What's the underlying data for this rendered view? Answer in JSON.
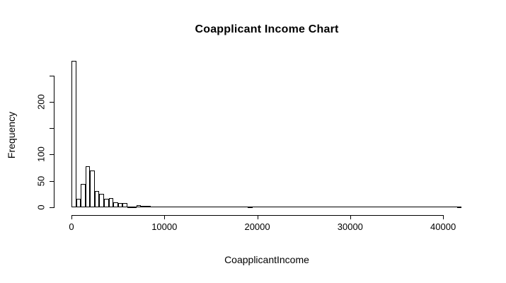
{
  "chart_data": {
    "type": "bar",
    "subtype": "histogram",
    "title": "Coapplicant Income Chart",
    "xlabel": "CoapplicantIncome",
    "ylabel": "Frequency",
    "xlim": [
      0,
      42000
    ],
    "ylim": [
      0,
      250
    ],
    "bin_width": 500,
    "x_ticks": [
      0,
      10000,
      20000,
      30000,
      40000
    ],
    "x_tick_labels": [
      "0",
      "10000",
      "20000",
      "30000",
      "40000"
    ],
    "y_ticks": [
      0,
      50,
      100,
      150,
      200,
      250
    ],
    "y_tick_labels": [
      "0",
      "50",
      "100",
      "",
      "200",
      ""
    ],
    "grid": "off",
    "legend": "none",
    "bins": [
      {
        "start": 0,
        "count": 279
      },
      {
        "start": 500,
        "count": 16
      },
      {
        "start": 1000,
        "count": 44
      },
      {
        "start": 1500,
        "count": 78
      },
      {
        "start": 2000,
        "count": 70
      },
      {
        "start": 2500,
        "count": 30
      },
      {
        "start": 3000,
        "count": 25
      },
      {
        "start": 3500,
        "count": 15
      },
      {
        "start": 4000,
        "count": 17
      },
      {
        "start": 4500,
        "count": 9
      },
      {
        "start": 5000,
        "count": 7
      },
      {
        "start": 5500,
        "count": 7
      },
      {
        "start": 6000,
        "count": 1
      },
      {
        "start": 6500,
        "count": 1
      },
      {
        "start": 7000,
        "count": 4
      },
      {
        "start": 7500,
        "count": 2
      },
      {
        "start": 8000,
        "count": 2
      },
      {
        "start": 19000,
        "count": 1
      },
      {
        "start": 41500,
        "count": 1
      }
    ],
    "colors": {
      "bar_fill": "#ffffff",
      "bar_border": "#000000",
      "axis": "#000000",
      "text": "#000000",
      "background": "#ffffff"
    }
  }
}
